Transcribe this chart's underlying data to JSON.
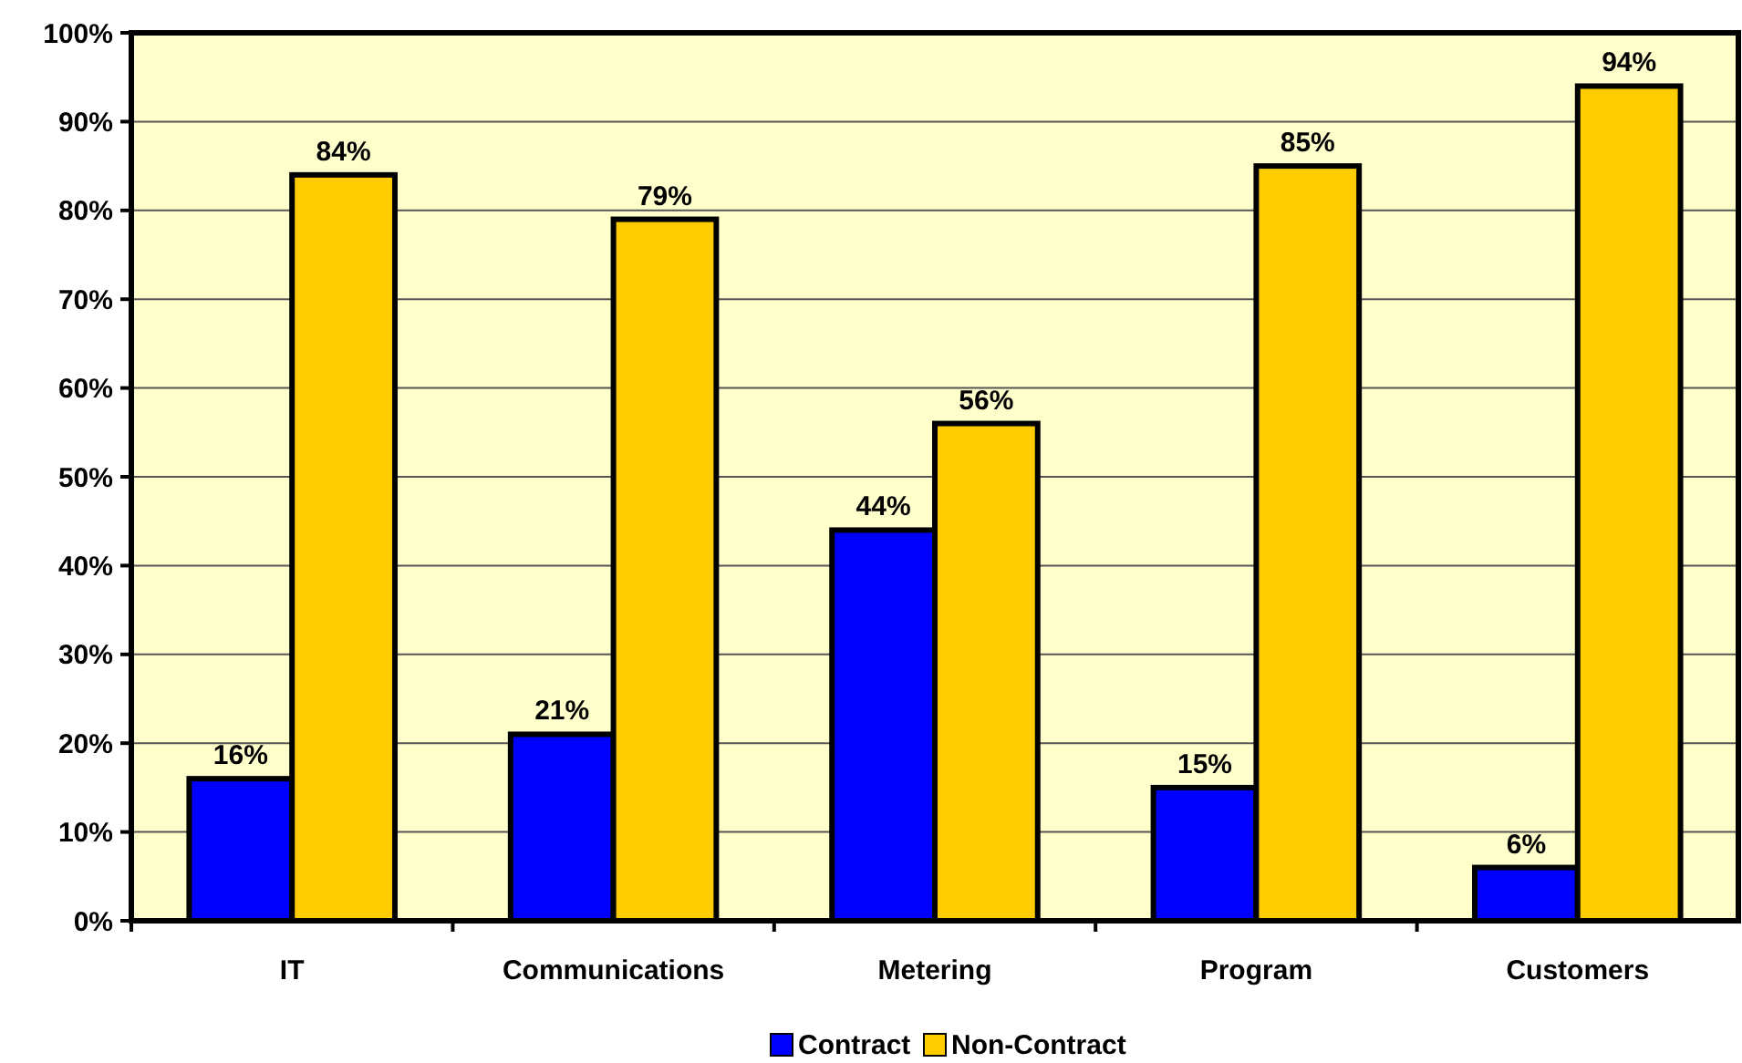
{
  "chart_data": {
    "type": "bar",
    "categories": [
      "IT",
      "Communications",
      "Metering",
      "Program",
      "Customers"
    ],
    "series": [
      {
        "name": "Contract",
        "color": "#0000ff",
        "values": [
          16,
          21,
          44,
          15,
          6
        ],
        "value_labels": [
          "16%",
          "21%",
          "44%",
          "15%",
          "6%"
        ]
      },
      {
        "name": "Non-Contract",
        "color": "#ffcc00",
        "values": [
          84,
          79,
          56,
          85,
          94
        ],
        "value_labels": [
          "84%",
          "79%",
          "56%",
          "85%",
          "94%"
        ]
      }
    ],
    "ylim": [
      0,
      100
    ],
    "yticks": [
      {
        "value": 0,
        "label": "0%"
      },
      {
        "value": 10,
        "label": "10%"
      },
      {
        "value": 20,
        "label": "20%"
      },
      {
        "value": 30,
        "label": "30%"
      },
      {
        "value": 40,
        "label": "40%"
      },
      {
        "value": 50,
        "label": "50%"
      },
      {
        "value": 60,
        "label": "60%"
      },
      {
        "value": 70,
        "label": "70%"
      },
      {
        "value": 80,
        "label": "80%"
      },
      {
        "value": 90,
        "label": "90%"
      },
      {
        "value": 100,
        "label": "100%"
      }
    ],
    "grid": "y",
    "legend": "bottom"
  }
}
